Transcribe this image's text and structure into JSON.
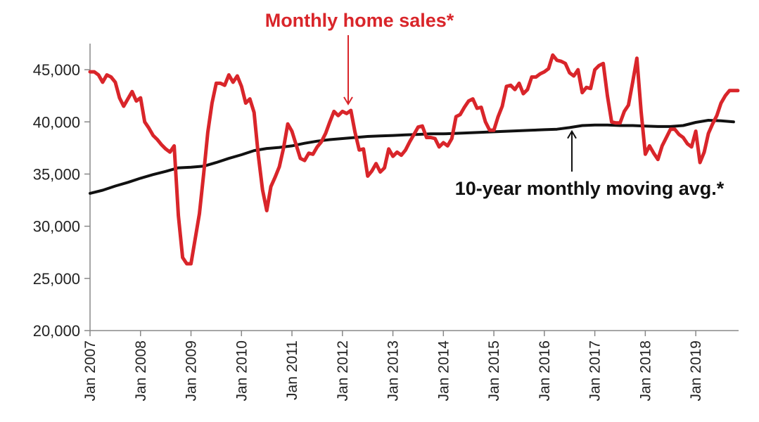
{
  "chart_data": {
    "type": "line",
    "title": "",
    "xlabel": "",
    "ylabel": "",
    "ylim": [
      20000,
      47500
    ],
    "xlim": [
      "2007-01",
      "2019-11"
    ],
    "grid": false,
    "legend": "none",
    "y_ticks": [
      {
        "value": 20000,
        "label": "20,000"
      },
      {
        "value": 25000,
        "label": "25,000"
      },
      {
        "value": 30000,
        "label": "30,000"
      },
      {
        "value": 35000,
        "label": "35,000"
      },
      {
        "value": 40000,
        "label": "40,000"
      },
      {
        "value": 45000,
        "label": "45,000"
      }
    ],
    "x_ticks": [
      {
        "value": "2007-01",
        "label": "Jan 2007"
      },
      {
        "value": "2008-01",
        "label": "Jan 2008"
      },
      {
        "value": "2009-01",
        "label": "Jan 2009"
      },
      {
        "value": "2010-01",
        "label": "Jan 2010"
      },
      {
        "value": "2011-01",
        "label": "Jan 2011"
      },
      {
        "value": "2012-01",
        "label": "Jan 2012"
      },
      {
        "value": "2013-01",
        "label": "Jan 2013"
      },
      {
        "value": "2014-01",
        "label": "Jan 2014"
      },
      {
        "value": "2015-01",
        "label": "Jan 2015"
      },
      {
        "value": "2016-01",
        "label": "Jan 2016"
      },
      {
        "value": "2017-01",
        "label": "Jan 2017"
      },
      {
        "value": "2018-01",
        "label": "Jan 2018"
      },
      {
        "value": "2019-01",
        "label": "Jan 2019"
      }
    ],
    "series": [
      {
        "name": "Monthly home sales*",
        "color": "#d9252a",
        "points": [
          [
            "2007-01",
            44800
          ],
          [
            "2007-02",
            44800
          ],
          [
            "2007-03",
            44500
          ],
          [
            "2007-04",
            43800
          ],
          [
            "2007-05",
            44500
          ],
          [
            "2007-06",
            44300
          ],
          [
            "2007-07",
            43800
          ],
          [
            "2007-08",
            42300
          ],
          [
            "2007-09",
            41500
          ],
          [
            "2007-10",
            42200
          ],
          [
            "2007-11",
            42900
          ],
          [
            "2007-12",
            42000
          ],
          [
            "2008-01",
            42300
          ],
          [
            "2008-02",
            40000
          ],
          [
            "2008-03",
            39400
          ],
          [
            "2008-04",
            38700
          ],
          [
            "2008-05",
            38300
          ],
          [
            "2008-06",
            37800
          ],
          [
            "2008-07",
            37400
          ],
          [
            "2008-08",
            37100
          ],
          [
            "2008-09",
            37700
          ],
          [
            "2008-10",
            31000
          ],
          [
            "2008-11",
            27000
          ],
          [
            "2008-12",
            26400
          ],
          [
            "2009-01",
            26400
          ],
          [
            "2009-02",
            28800
          ],
          [
            "2009-03",
            31200
          ],
          [
            "2009-04",
            35000
          ],
          [
            "2009-05",
            39000
          ],
          [
            "2009-06",
            41800
          ],
          [
            "2009-07",
            43700
          ],
          [
            "2009-08",
            43700
          ],
          [
            "2009-09",
            43500
          ],
          [
            "2009-10",
            44500
          ],
          [
            "2009-11",
            43800
          ],
          [
            "2009-12",
            44400
          ],
          [
            "2010-01",
            43400
          ],
          [
            "2010-02",
            41800
          ],
          [
            "2010-03",
            42200
          ],
          [
            "2010-04",
            40900
          ],
          [
            "2010-05",
            36800
          ],
          [
            "2010-06",
            33500
          ],
          [
            "2010-07",
            31500
          ],
          [
            "2010-08",
            33800
          ],
          [
            "2010-09",
            34700
          ],
          [
            "2010-10",
            35700
          ],
          [
            "2010-11",
            37500
          ],
          [
            "2010-12",
            39800
          ],
          [
            "2011-01",
            39100
          ],
          [
            "2011-02",
            37800
          ],
          [
            "2011-03",
            36500
          ],
          [
            "2011-04",
            36300
          ],
          [
            "2011-05",
            37000
          ],
          [
            "2011-06",
            36900
          ],
          [
            "2011-07",
            37600
          ],
          [
            "2011-08",
            38100
          ],
          [
            "2011-09",
            38900
          ],
          [
            "2011-10",
            40000
          ],
          [
            "2011-11",
            41000
          ],
          [
            "2011-12",
            40600
          ],
          [
            "2012-01",
            41000
          ],
          [
            "2012-02",
            40800
          ],
          [
            "2012-03",
            41100
          ],
          [
            "2012-04",
            39000
          ],
          [
            "2012-05",
            37300
          ],
          [
            "2012-06",
            37400
          ],
          [
            "2012-07",
            34800
          ],
          [
            "2012-08",
            35300
          ],
          [
            "2012-09",
            36000
          ],
          [
            "2012-10",
            35200
          ],
          [
            "2012-11",
            35600
          ],
          [
            "2012-12",
            37400
          ],
          [
            "2013-01",
            36700
          ],
          [
            "2013-02",
            37100
          ],
          [
            "2013-03",
            36800
          ],
          [
            "2013-04",
            37300
          ],
          [
            "2013-05",
            38100
          ],
          [
            "2013-06",
            38800
          ],
          [
            "2013-07",
            39500
          ],
          [
            "2013-08",
            39600
          ],
          [
            "2013-09",
            38500
          ],
          [
            "2013-10",
            38500
          ],
          [
            "2013-11",
            38400
          ],
          [
            "2013-12",
            37600
          ],
          [
            "2014-01",
            38000
          ],
          [
            "2014-02",
            37700
          ],
          [
            "2014-03",
            38400
          ],
          [
            "2014-04",
            40500
          ],
          [
            "2014-05",
            40700
          ],
          [
            "2014-06",
            41400
          ],
          [
            "2014-07",
            42000
          ],
          [
            "2014-08",
            42200
          ],
          [
            "2014-09",
            41300
          ],
          [
            "2014-10",
            41400
          ],
          [
            "2014-11",
            40000
          ],
          [
            "2014-12",
            39200
          ],
          [
            "2015-01",
            39200
          ],
          [
            "2015-02",
            40500
          ],
          [
            "2015-03",
            41500
          ],
          [
            "2015-04",
            43400
          ],
          [
            "2015-05",
            43500
          ],
          [
            "2015-06",
            43100
          ],
          [
            "2015-07",
            43700
          ],
          [
            "2015-08",
            42700
          ],
          [
            "2015-09",
            43100
          ],
          [
            "2015-10",
            44300
          ],
          [
            "2015-11",
            44300
          ],
          [
            "2015-12",
            44600
          ],
          [
            "2016-01",
            44800
          ],
          [
            "2016-02",
            45100
          ],
          [
            "2016-03",
            46400
          ],
          [
            "2016-04",
            45900
          ],
          [
            "2016-05",
            45800
          ],
          [
            "2016-06",
            45600
          ],
          [
            "2016-07",
            44700
          ],
          [
            "2016-08",
            44400
          ],
          [
            "2016-09",
            45000
          ],
          [
            "2016-10",
            42800
          ],
          [
            "2016-11",
            43300
          ],
          [
            "2016-12",
            43200
          ],
          [
            "2017-01",
            45000
          ],
          [
            "2017-02",
            45400
          ],
          [
            "2017-03",
            45600
          ],
          [
            "2017-04",
            42500
          ],
          [
            "2017-05",
            40000
          ],
          [
            "2017-06",
            39900
          ],
          [
            "2017-07",
            39900
          ],
          [
            "2017-08",
            41000
          ],
          [
            "2017-09",
            41600
          ],
          [
            "2017-10",
            43800
          ],
          [
            "2017-11",
            46100
          ],
          [
            "2017-12",
            41000
          ],
          [
            "2018-01",
            36900
          ],
          [
            "2018-02",
            37700
          ],
          [
            "2018-03",
            37000
          ],
          [
            "2018-04",
            36400
          ],
          [
            "2018-05",
            37700
          ],
          [
            "2018-06",
            38500
          ],
          [
            "2018-07",
            39300
          ],
          [
            "2018-08",
            39300
          ],
          [
            "2018-09",
            38800
          ],
          [
            "2018-10",
            38500
          ],
          [
            "2018-11",
            37900
          ],
          [
            "2018-12",
            37600
          ],
          [
            "2019-01",
            39100
          ],
          [
            "2019-02",
            36100
          ],
          [
            "2019-03",
            37100
          ],
          [
            "2019-04",
            38900
          ],
          [
            "2019-05",
            39800
          ],
          [
            "2019-06",
            40600
          ],
          [
            "2019-07",
            41800
          ],
          [
            "2019-08",
            42500
          ],
          [
            "2019-09",
            43000
          ],
          [
            "2019-10",
            43000
          ],
          [
            "2019-11",
            43000
          ]
        ]
      },
      {
        "name": "10-year monthly moving avg.*",
        "color": "#111111",
        "points": [
          [
            "2007-01",
            33150
          ],
          [
            "2007-04",
            33450
          ],
          [
            "2007-07",
            33850
          ],
          [
            "2007-10",
            34200
          ],
          [
            "2008-01",
            34600
          ],
          [
            "2008-04",
            34950
          ],
          [
            "2008-07",
            35250
          ],
          [
            "2008-10",
            35600
          ],
          [
            "2009-01",
            35650
          ],
          [
            "2009-04",
            35750
          ],
          [
            "2009-07",
            36100
          ],
          [
            "2009-10",
            36500
          ],
          [
            "2010-01",
            36850
          ],
          [
            "2010-04",
            37250
          ],
          [
            "2010-07",
            37450
          ],
          [
            "2010-10",
            37550
          ],
          [
            "2011-01",
            37700
          ],
          [
            "2011-04",
            37950
          ],
          [
            "2011-07",
            38150
          ],
          [
            "2011-10",
            38300
          ],
          [
            "2012-01",
            38400
          ],
          [
            "2012-04",
            38500
          ],
          [
            "2012-07",
            38600
          ],
          [
            "2012-10",
            38650
          ],
          [
            "2013-01",
            38700
          ],
          [
            "2013-04",
            38750
          ],
          [
            "2013-07",
            38800
          ],
          [
            "2013-10",
            38850
          ],
          [
            "2014-01",
            38850
          ],
          [
            "2014-04",
            38900
          ],
          [
            "2014-07",
            38950
          ],
          [
            "2014-10",
            39000
          ],
          [
            "2015-01",
            39050
          ],
          [
            "2015-04",
            39100
          ],
          [
            "2015-07",
            39150
          ],
          [
            "2015-10",
            39200
          ],
          [
            "2016-01",
            39250
          ],
          [
            "2016-04",
            39300
          ],
          [
            "2016-07",
            39450
          ],
          [
            "2016-10",
            39650
          ],
          [
            "2017-01",
            39700
          ],
          [
            "2017-04",
            39700
          ],
          [
            "2017-07",
            39650
          ],
          [
            "2017-10",
            39650
          ],
          [
            "2018-01",
            39600
          ],
          [
            "2018-04",
            39550
          ],
          [
            "2018-07",
            39550
          ],
          [
            "2018-10",
            39650
          ],
          [
            "2019-01",
            39950
          ],
          [
            "2019-04",
            40150
          ],
          [
            "2019-07",
            40100
          ],
          [
            "2019-10",
            40000
          ]
        ]
      }
    ],
    "annotations": [
      {
        "text": "Monthly home sales*",
        "color": "#d9252a",
        "arrow_to": [
          "2012-03",
          41300
        ]
      },
      {
        "text": "10-year monthly moving avg.*",
        "color": "#111111",
        "arrow_to": [
          "2016-08",
          39500
        ]
      }
    ]
  }
}
